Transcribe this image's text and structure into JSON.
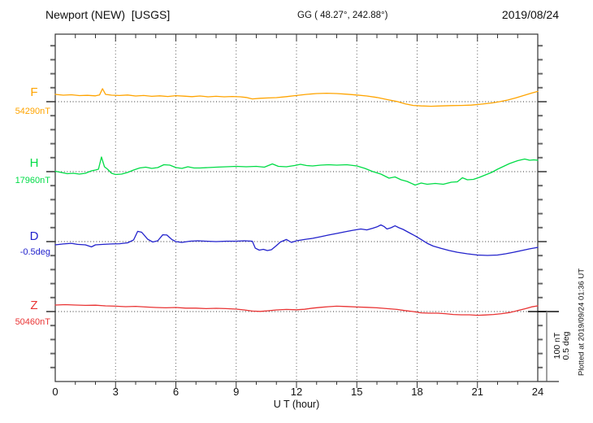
{
  "header": {
    "station": "Newport (NEW)  [USGS]",
    "coords": "GG ( 48.27°, 242.88°)",
    "date": "2019/08/24"
  },
  "axis": {
    "xlabel": "U T (hour)"
  },
  "side_notes": {
    "scale_line1": "100 nT",
    "scale_line2": "0.5 deg",
    "plotted_note": "Plotted at 2019/09/24 01:36 UT"
  },
  "chart_data": {
    "type": "line",
    "title": "Newport (NEW) [USGS] magnetogram 2019/08/24",
    "xlabel": "U T (hour)",
    "x_range": [
      0,
      24
    ],
    "x_major_ticks": [
      0,
      3,
      6,
      9,
      12,
      15,
      18,
      21,
      24
    ],
    "x_minor_tick_every_hours": 1,
    "grid": "dotted vertical lines every 3 h; dotted horizontal baseline per channel",
    "scale_per_division": {
      "field_nT": 100,
      "angle_deg": 0.5
    },
    "series": [
      {
        "name": "F",
        "base_label": "54290nT",
        "base_value": 54290,
        "unit": "nT",
        "color": "#FFA400",
        "points": [
          [
            0,
            10.5
          ],
          [
            0.4,
            9.3
          ],
          [
            0.8,
            9.9
          ],
          [
            1.2,
            8.7
          ],
          [
            1.6,
            9.1
          ],
          [
            2,
            8.4
          ],
          [
            2.2,
            9.5
          ],
          [
            2.35,
            18.6
          ],
          [
            2.5,
            10.5
          ],
          [
            2.8,
            9.3
          ],
          [
            3.2,
            8.8
          ],
          [
            3.6,
            9.5
          ],
          [
            4,
            8.1
          ],
          [
            4.4,
            8.8
          ],
          [
            4.8,
            7.7
          ],
          [
            5.2,
            8.4
          ],
          [
            5.6,
            7.4
          ],
          [
            6,
            8.6
          ],
          [
            6.4,
            7.9
          ],
          [
            6.8,
            7.2
          ],
          [
            7.2,
            8.1
          ],
          [
            7.6,
            7
          ],
          [
            8,
            7.7
          ],
          [
            8.4,
            7
          ],
          [
            8.8,
            7.4
          ],
          [
            9.2,
            7
          ],
          [
            9.5,
            6
          ],
          [
            9.8,
            4
          ],
          [
            10.2,
            4.9
          ],
          [
            10.6,
            5.3
          ],
          [
            11,
            5.8
          ],
          [
            11.5,
            7.2
          ],
          [
            12,
            8.8
          ],
          [
            12.5,
            10.5
          ],
          [
            13,
            11.6
          ],
          [
            13.5,
            12.1
          ],
          [
            14,
            11.6
          ],
          [
            14.5,
            10.7
          ],
          [
            15,
            9.5
          ],
          [
            15.5,
            8.1
          ],
          [
            16,
            6
          ],
          [
            16.5,
            3
          ],
          [
            17,
            0.2
          ],
          [
            17.4,
            -3
          ],
          [
            17.8,
            -5.3
          ],
          [
            18.2,
            -6
          ],
          [
            18.7,
            -6.5
          ],
          [
            19.2,
            -6
          ],
          [
            19.7,
            -5.6
          ],
          [
            20.2,
            -5.3
          ],
          [
            20.7,
            -4.9
          ],
          [
            21.2,
            -3.5
          ],
          [
            21.7,
            -1.9
          ],
          [
            22.1,
            0
          ],
          [
            22.5,
            2.3
          ],
          [
            22.9,
            5.3
          ],
          [
            23.3,
            8.8
          ],
          [
            23.7,
            12.3
          ],
          [
            24,
            14.7
          ]
        ]
      },
      {
        "name": "H",
        "base_label": "17960nT",
        "base_value": 17960,
        "unit": "nT",
        "color": "#00DC46",
        "points": [
          [
            0,
            0.6
          ],
          [
            0.3,
            -1.2
          ],
          [
            0.6,
            -2.9
          ],
          [
            0.9,
            -2.3
          ],
          [
            1.2,
            -3.5
          ],
          [
            1.5,
            -2.3
          ],
          [
            1.8,
            1.2
          ],
          [
            2,
            2.3
          ],
          [
            2.15,
            3.5
          ],
          [
            2.3,
            20.9
          ],
          [
            2.45,
            7
          ],
          [
            2.6,
            3.5
          ],
          [
            2.8,
            -2.3
          ],
          [
            3,
            -4.1
          ],
          [
            3.3,
            -3.5
          ],
          [
            3.6,
            -1.2
          ],
          [
            3.9,
            2.3
          ],
          [
            4.2,
            5.2
          ],
          [
            4.5,
            6.4
          ],
          [
            4.8,
            4.7
          ],
          [
            5.1,
            5.8
          ],
          [
            5.4,
            9.9
          ],
          [
            5.7,
            9.3
          ],
          [
            6,
            5.8
          ],
          [
            6.3,
            4.7
          ],
          [
            6.6,
            7
          ],
          [
            6.9,
            5.2
          ],
          [
            7.2,
            5.2
          ],
          [
            7.6,
            5.8
          ],
          [
            8,
            6.4
          ],
          [
            8.5,
            7
          ],
          [
            9,
            7.6
          ],
          [
            9.5,
            7
          ],
          [
            10,
            7.6
          ],
          [
            10.4,
            6.4
          ],
          [
            10.8,
            11
          ],
          [
            11.1,
            7.6
          ],
          [
            11.5,
            7
          ],
          [
            11.9,
            8.7
          ],
          [
            12.2,
            10.5
          ],
          [
            12.5,
            8.7
          ],
          [
            12.8,
            8.1
          ],
          [
            13.2,
            9.3
          ],
          [
            13.6,
            9.9
          ],
          [
            14,
            9.3
          ],
          [
            14.5,
            9.9
          ],
          [
            15,
            8.1
          ],
          [
            15.4,
            4.7
          ],
          [
            15.8,
            0
          ],
          [
            16.2,
            -3.5
          ],
          [
            16.6,
            -9.3
          ],
          [
            16.9,
            -7.6
          ],
          [
            17.2,
            -11.6
          ],
          [
            17.5,
            -14
          ],
          [
            17.9,
            -19.2
          ],
          [
            18.2,
            -16.3
          ],
          [
            18.5,
            -18
          ],
          [
            18.9,
            -16.9
          ],
          [
            19.3,
            -18
          ],
          [
            19.7,
            -15.1
          ],
          [
            20,
            -14.5
          ],
          [
            20.25,
            -8.7
          ],
          [
            20.5,
            -11.6
          ],
          [
            20.8,
            -11
          ],
          [
            21.1,
            -8.1
          ],
          [
            21.4,
            -4.7
          ],
          [
            21.7,
            -1.2
          ],
          [
            22,
            3.5
          ],
          [
            22.3,
            7.6
          ],
          [
            22.6,
            11.6
          ],
          [
            23,
            15.7
          ],
          [
            23.35,
            18
          ],
          [
            23.6,
            16.3
          ],
          [
            23.8,
            16.9
          ],
          [
            24,
            16.3
          ]
        ]
      },
      {
        "name": "D",
        "base_label": "-0.5deg",
        "base_value": -0.5,
        "unit": "deg",
        "color": "#2222CC",
        "points": [
          [
            0,
            -0.023
          ],
          [
            0.4,
            -0.017
          ],
          [
            0.8,
            -0.012
          ],
          [
            1.1,
            -0.02
          ],
          [
            1.5,
            -0.023
          ],
          [
            1.8,
            -0.038
          ],
          [
            2,
            -0.023
          ],
          [
            2.4,
            -0.02
          ],
          [
            2.8,
            -0.017
          ],
          [
            3.2,
            -0.015
          ],
          [
            3.6,
            -0.009
          ],
          [
            3.9,
            0.012
          ],
          [
            4.1,
            0.073
          ],
          [
            4.3,
            0.067
          ],
          [
            4.6,
            0.017
          ],
          [
            4.85,
            -0.003
          ],
          [
            5.1,
            0.006
          ],
          [
            5.35,
            0.049
          ],
          [
            5.55,
            0.047
          ],
          [
            5.8,
            0.015
          ],
          [
            6,
            0
          ],
          [
            6.3,
            -0.006
          ],
          [
            6.7,
            0.003
          ],
          [
            7.1,
            0.006
          ],
          [
            7.5,
            0.003
          ],
          [
            8,
            0
          ],
          [
            8.5,
            0.003
          ],
          [
            9,
            0.003
          ],
          [
            9.4,
            0.006
          ],
          [
            9.8,
            0.003
          ],
          [
            9.95,
            -0.047
          ],
          [
            10.15,
            -0.061
          ],
          [
            10.35,
            -0.055
          ],
          [
            10.55,
            -0.064
          ],
          [
            10.75,
            -0.058
          ],
          [
            10.95,
            -0.035
          ],
          [
            11.2,
            -0.003
          ],
          [
            11.5,
            0.015
          ],
          [
            11.75,
            -0.006
          ],
          [
            12,
            0.006
          ],
          [
            12.4,
            0.015
          ],
          [
            12.8,
            0.023
          ],
          [
            13.2,
            0.035
          ],
          [
            13.6,
            0.047
          ],
          [
            14,
            0.058
          ],
          [
            14.4,
            0.07
          ],
          [
            14.8,
            0.081
          ],
          [
            15.2,
            0.09
          ],
          [
            15.5,
            0.084
          ],
          [
            15.8,
            0.096
          ],
          [
            16,
            0.105
          ],
          [
            16.2,
            0.119
          ],
          [
            16.35,
            0.108
          ],
          [
            16.5,
            0.09
          ],
          [
            16.7,
            0.099
          ],
          [
            16.9,
            0.113
          ],
          [
            17.1,
            0.099
          ],
          [
            17.3,
            0.087
          ],
          [
            17.6,
            0.064
          ],
          [
            17.9,
            0.041
          ],
          [
            18.2,
            0.015
          ],
          [
            18.5,
            -0.012
          ],
          [
            18.8,
            -0.032
          ],
          [
            19.2,
            -0.049
          ],
          [
            19.6,
            -0.064
          ],
          [
            20,
            -0.076
          ],
          [
            20.5,
            -0.087
          ],
          [
            21,
            -0.096
          ],
          [
            21.5,
            -0.099
          ],
          [
            22,
            -0.096
          ],
          [
            22.4,
            -0.087
          ],
          [
            22.8,
            -0.076
          ],
          [
            23.2,
            -0.064
          ],
          [
            23.6,
            -0.052
          ],
          [
            24,
            -0.041
          ]
        ]
      },
      {
        "name": "Z",
        "base_label": "50460nT",
        "base_value": 50460,
        "unit": "nT",
        "color": "#E93434",
        "points": [
          [
            0,
            9.3
          ],
          [
            0.5,
            9.9
          ],
          [
            1,
            9.3
          ],
          [
            1.5,
            8.8
          ],
          [
            2,
            9.1
          ],
          [
            2.5,
            8.1
          ],
          [
            3,
            7.7
          ],
          [
            3.5,
            7
          ],
          [
            4,
            7.4
          ],
          [
            4.5,
            6.5
          ],
          [
            5,
            5.8
          ],
          [
            5.5,
            5.3
          ],
          [
            6,
            5.8
          ],
          [
            6.5,
            4.9
          ],
          [
            7,
            4.9
          ],
          [
            7.5,
            4.2
          ],
          [
            8,
            4.7
          ],
          [
            8.5,
            4.2
          ],
          [
            9,
            3.5
          ],
          [
            9.4,
            2.3
          ],
          [
            9.8,
            0.7
          ],
          [
            10.2,
            0.2
          ],
          [
            10.6,
            1.2
          ],
          [
            11,
            2.3
          ],
          [
            11.5,
            3
          ],
          [
            12,
            2.6
          ],
          [
            12.4,
            3.3
          ],
          [
            12.8,
            4.9
          ],
          [
            13.2,
            6
          ],
          [
            13.6,
            7
          ],
          [
            14,
            7.7
          ],
          [
            14.5,
            7.2
          ],
          [
            15,
            6.5
          ],
          [
            15.5,
            6
          ],
          [
            16,
            5.3
          ],
          [
            16.5,
            4.2
          ],
          [
            17,
            3
          ],
          [
            17.4,
            1.4
          ],
          [
            17.8,
            0
          ],
          [
            18.2,
            -1.9
          ],
          [
            18.6,
            -2.3
          ],
          [
            19,
            -2.3
          ],
          [
            19.4,
            -3
          ],
          [
            19.8,
            -4.2
          ],
          [
            20.2,
            -4.7
          ],
          [
            20.6,
            -4.7
          ],
          [
            21,
            -5.3
          ],
          [
            21.4,
            -4.9
          ],
          [
            21.8,
            -4.2
          ],
          [
            22.2,
            -3
          ],
          [
            22.6,
            -1.4
          ],
          [
            23,
            1.4
          ],
          [
            23.4,
            4.2
          ],
          [
            23.7,
            6.7
          ],
          [
            24,
            8.1
          ]
        ]
      }
    ]
  }
}
